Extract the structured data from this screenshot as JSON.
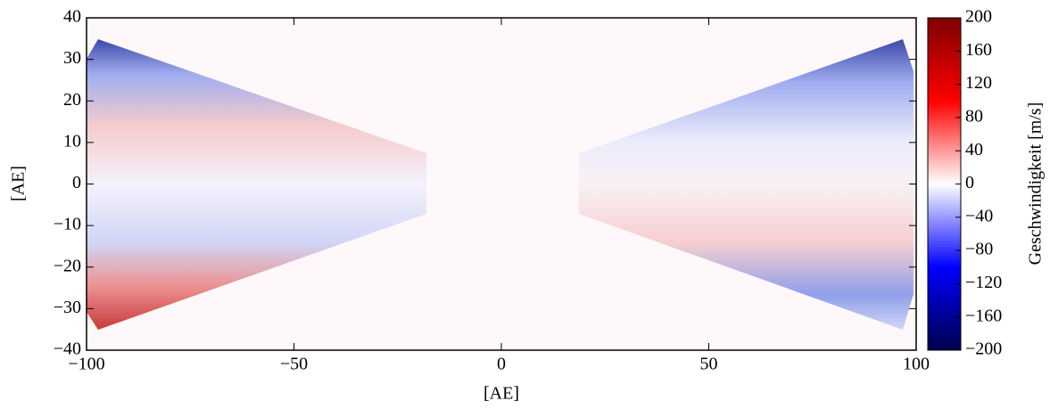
{
  "chart_data": {
    "type": "heatmap",
    "xlabel": "[AE]",
    "ylabel": "[AE]",
    "colorbar_label": "Geschwindigkeit [m/s]",
    "colormap": "seismic",
    "xlim": [
      -100,
      100
    ],
    "xticks": [
      {
        "value": -100,
        "label": "−100"
      },
      {
        "value": -50,
        "label": "−50"
      },
      0,
      50,
      100
    ],
    "ylim": [
      -40,
      40
    ],
    "yticks": [
      {
        "value": -40,
        "label": "−40"
      },
      {
        "value": -30,
        "label": "−30"
      },
      {
        "value": -20,
        "label": "−20"
      },
      {
        "value": -10,
        "label": "−10"
      },
      0,
      10,
      20,
      30,
      40
    ],
    "clim": [
      -200,
      200
    ],
    "cticks": [
      {
        "value": -200,
        "label": "−200"
      },
      {
        "value": -160,
        "label": "−160"
      },
      {
        "value": -120,
        "label": "−120"
      },
      {
        "value": -80,
        "label": "−80"
      },
      {
        "value": -40,
        "label": "−40"
      },
      0,
      40,
      80,
      120,
      160,
      200
    ]
  }
}
